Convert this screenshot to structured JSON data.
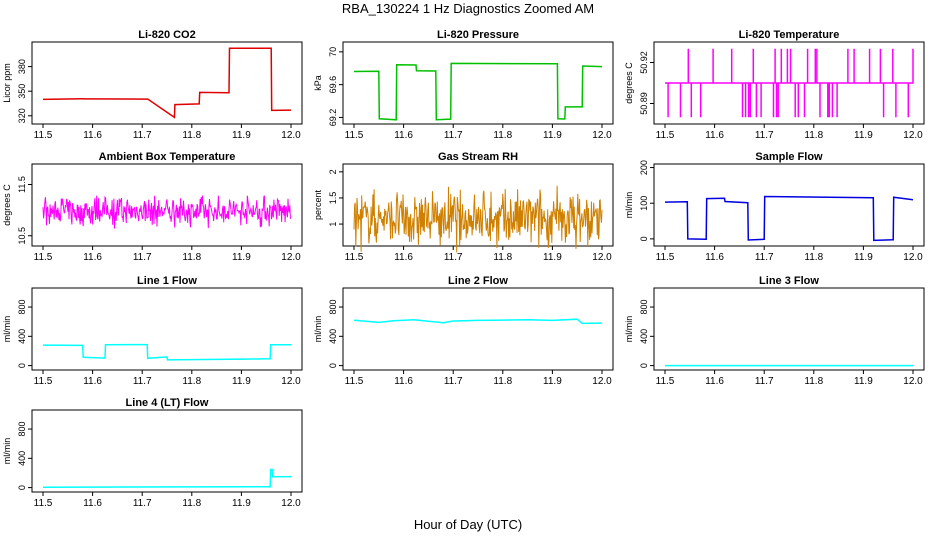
{
  "figure": {
    "title": "RBA_130224  1 Hz Diagnostics Zoomed AM",
    "xlabel": "Hour of Day (UTC)"
  },
  "chart_data": [
    {
      "type": "line",
      "title": "Li-820 CO2",
      "ylabel": "Licor ppm",
      "xlim": [
        11.5,
        12.0
      ],
      "ylim": [
        310,
        410
      ],
      "xticks": [
        11.5,
        11.6,
        11.7,
        11.8,
        11.9,
        12.0
      ],
      "yticks": [
        320,
        350,
        380
      ],
      "color": "#e00000",
      "series": [
        {
          "x": [
            11.5,
            11.58,
            11.581,
            11.71,
            11.711,
            11.765,
            11.766,
            11.815,
            11.816,
            11.875,
            11.876,
            11.96,
            11.961,
            12.0
          ],
          "y": [
            340,
            340,
            341,
            341,
            340,
            318,
            334,
            334,
            348,
            348,
            402,
            402,
            326,
            327
          ]
        }
      ]
    },
    {
      "type": "line",
      "title": "Li-820 Pressure",
      "ylabel": "kPa",
      "xlim": [
        11.5,
        12.0
      ],
      "ylim": [
        69.12,
        70.12
      ],
      "xticks": [
        11.5,
        11.6,
        11.7,
        11.8,
        11.9,
        12.0
      ],
      "yticks": [
        69.2,
        69.6,
        70.0
      ],
      "color": "#00c000",
      "series": [
        {
          "x": [
            11.5,
            11.55,
            11.551,
            11.585,
            11.586,
            11.625,
            11.626,
            11.665,
            11.666,
            11.695,
            11.696,
            11.91,
            11.911,
            11.925,
            11.926,
            11.96,
            11.961,
            12.0
          ],
          "y": [
            69.76,
            69.76,
            69.18,
            69.18,
            69.84,
            69.84,
            69.76,
            69.76,
            69.18,
            69.18,
            69.85,
            69.85,
            69.18,
            69.18,
            69.32,
            69.32,
            69.83,
            69.82
          ]
        }
      ]
    },
    {
      "type": "line",
      "title": "Li-820 Temperature",
      "ylabel": "degrees C",
      "xlim": [
        11.5,
        12.0
      ],
      "ylim": [
        50.875,
        50.935
      ],
      "xticks": [
        11.5,
        11.6,
        11.7,
        11.8,
        11.9,
        12.0
      ],
      "yticks": [
        50.89,
        50.92
      ],
      "color": "#ff00ff",
      "series": [
        {
          "baseline": 50.905,
          "low": 50.88,
          "high": 50.93
        }
      ]
    },
    {
      "type": "line",
      "title": "Ambient Box Temperature",
      "ylabel": "degrees C",
      "xlim": [
        11.5,
        12.0
      ],
      "ylim": [
        10.3,
        11.9
      ],
      "xticks": [
        11.5,
        11.6,
        11.7,
        11.8,
        11.9,
        12.0
      ],
      "yticks": [
        10.5,
        11.5
      ],
      "color": "#ff00ff",
      "series": [
        {
          "mean": 10.98,
          "spread": 0.5
        }
      ]
    },
    {
      "type": "line",
      "title": "Gas Stream RH",
      "ylabel": "percent",
      "xlim": [
        11.5,
        12.0
      ],
      "ylim": [
        0.58,
        2.15
      ],
      "xticks": [
        11.5,
        11.6,
        11.7,
        11.8,
        11.9,
        12.0
      ],
      "yticks": [
        1.0,
        1.5,
        2.0
      ],
      "color": "#d08000",
      "series": [
        {
          "mean": 1.1,
          "spread": 0.95
        }
      ]
    },
    {
      "type": "line",
      "title": "Sample Flow",
      "ylabel": "ml/min",
      "xlim": [
        11.5,
        12.0
      ],
      "ylim": [
        -20,
        210
      ],
      "xticks": [
        11.5,
        11.6,
        11.7,
        11.8,
        11.9,
        12.0
      ],
      "yticks": [
        0,
        100,
        200
      ],
      "color": "#0000e0",
      "series": [
        {
          "x": [
            11.5,
            11.545,
            11.546,
            11.583,
            11.584,
            11.62,
            11.621,
            11.667,
            11.668,
            11.7,
            11.701,
            11.92,
            11.921,
            11.96,
            11.961,
            12.0
          ],
          "y": [
            103,
            103,
            -2,
            -2,
            115,
            115,
            103,
            103,
            -2,
            -2,
            117,
            117,
            -2,
            -2,
            115,
            110
          ]
        }
      ]
    },
    {
      "type": "line",
      "title": "Line 1 Flow",
      "ylabel": "ml/min",
      "xlim": [
        11.5,
        12.0
      ],
      "ylim": [
        -60,
        1060
      ],
      "xticks": [
        11.5,
        11.6,
        11.7,
        11.8,
        11.9,
        12.0
      ],
      "yticks": [
        0,
        400,
        800
      ],
      "color": "#00ffff",
      "series": [
        {
          "x": [
            11.5,
            11.58,
            11.581,
            11.625,
            11.626,
            11.71,
            11.711,
            11.75,
            11.751,
            11.958,
            11.959,
            12.0
          ],
          "y": [
            280,
            280,
            110,
            110,
            280,
            280,
            110,
            110,
            85,
            85,
            285,
            285
          ]
        }
      ]
    },
    {
      "type": "line",
      "title": "Line 2 Flow",
      "ylabel": "ml/min",
      "xlim": [
        11.5,
        12.0
      ],
      "ylim": [
        -60,
        1060
      ],
      "xticks": [
        11.5,
        11.6,
        11.7,
        11.8,
        11.9,
        12.0
      ],
      "yticks": [
        0,
        400,
        800
      ],
      "color": "#00ffff",
      "series": [
        {
          "x": [
            11.5,
            11.55,
            11.58,
            11.62,
            11.68,
            11.7,
            11.75,
            11.8,
            11.85,
            11.9,
            11.95,
            11.96,
            12.0
          ],
          "y": [
            620,
            590,
            620,
            625,
            580,
            620,
            625,
            625,
            625,
            625,
            625,
            580,
            580
          ]
        }
      ]
    },
    {
      "type": "line",
      "title": "Line 3 Flow",
      "ylabel": "ml/min",
      "xlim": [
        11.5,
        12.0
      ],
      "ylim": [
        -60,
        1060
      ],
      "xticks": [
        11.5,
        11.6,
        11.7,
        11.8,
        11.9,
        12.0
      ],
      "yticks": [
        0,
        400,
        800
      ],
      "color": "#00ffff",
      "series": [
        {
          "x": [
            11.5,
            12.0
          ],
          "y": [
            0,
            0
          ]
        }
      ]
    },
    {
      "type": "line",
      "title": "Line 4 (LT) Flow",
      "ylabel": "ml/min",
      "xlim": [
        11.5,
        12.0
      ],
      "ylim": [
        -60,
        1060
      ],
      "xticks": [
        11.5,
        11.6,
        11.7,
        11.8,
        11.9,
        12.0
      ],
      "yticks": [
        0,
        400,
        800
      ],
      "color": "#00ffff",
      "series": [
        {
          "x": [
            11.5,
            11.958,
            11.959,
            11.962,
            11.963,
            12.0
          ],
          "y": [
            5,
            5,
            250,
            250,
            150,
            150
          ]
        }
      ]
    }
  ]
}
